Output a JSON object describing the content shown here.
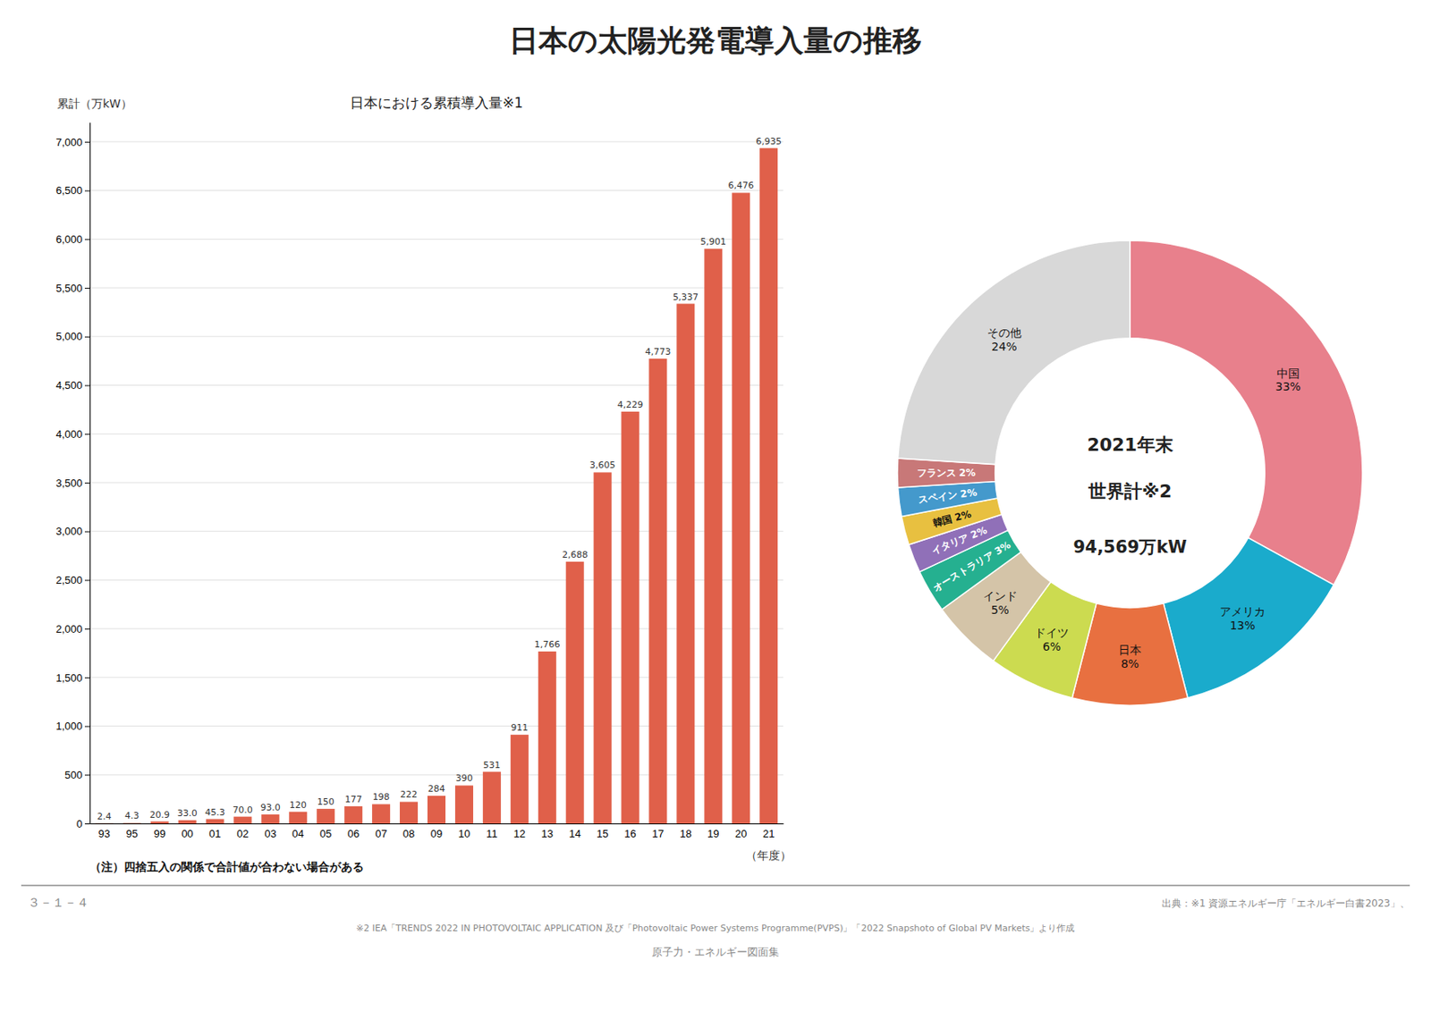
{
  "title": "日本の太陽光発電導入量の推移",
  "annotations": [
    "（注）四捨五入の関係で合計値が合わない場合がある",
    "３－１－４",
    "出典：※1 資源エネルギー庁「エネルギー白書2023」、",
    "※2 IEA「TRENDS 2022 IN PHOTOVOLTAIC APPLICATION 及び「Photovoltaic Power Systems Programme(PVPS)」「2022 Snapshoto of Global PV Markets」より作成",
    "原子力・エネルギー図面集"
  ],
  "chart_data": [
    {
      "type": "bar",
      "subtitle": "日本における累積導入量※1",
      "ylabel": "累計（万kW）",
      "xlabel": "（年度）",
      "categories": [
        "93",
        "95",
        "99",
        "00",
        "01",
        "02",
        "03",
        "04",
        "05",
        "06",
        "07",
        "08",
        "09",
        "10",
        "11",
        "12",
        "13",
        "14",
        "15",
        "16",
        "17",
        "18",
        "19",
        "20",
        "21"
      ],
      "values": [
        2.4,
        4.3,
        20.9,
        33.0,
        45.3,
        70,
        93,
        120,
        150,
        177,
        198,
        222,
        284,
        390,
        531,
        911,
        1766,
        2688,
        3605,
        4229,
        4773,
        5337,
        5901,
        6476,
        6935
      ],
      "value_labels": [
        "2.4",
        "4.3",
        "20.9",
        "33.0",
        "45.3",
        "70.0",
        "93.0",
        "120",
        "150",
        "177",
        "198",
        "222",
        "284",
        "390",
        "531",
        "911",
        "1,766",
        "2,688",
        "3,605",
        "4,229",
        "4,773",
        "5,337",
        "5,901",
        "6,476",
        "6,935"
      ],
      "data_labels": true,
      "color": "#E0604A",
      "ylim": [
        0,
        7200
      ],
      "yticks": [
        0,
        500,
        {
          "value": 1000,
          "label": "1,000"
        },
        {
          "value": 1500,
          "label": "1,500"
        },
        {
          "value": 2000,
          "label": "2,000"
        },
        {
          "value": 2500,
          "label": "2,500"
        },
        {
          "value": 3000,
          "label": "3,000"
        },
        {
          "value": 3500,
          "label": "3,500"
        },
        {
          "value": 4000,
          "label": "4,000"
        },
        {
          "value": 4500,
          "label": "4,500"
        },
        {
          "value": 5000,
          "label": "5,000"
        },
        {
          "value": 5500,
          "label": "5,500"
        },
        {
          "value": 6000,
          "label": "6,000"
        },
        {
          "value": 6500,
          "label": "6,500"
        },
        {
          "value": 7000,
          "label": "7,000"
        }
      ],
      "grid": true
    },
    {
      "type": "pie",
      "categories": [
        "中国",
        "アメリカ",
        "日本",
        "ドイツ",
        "インド",
        "オーストラリア",
        "イタリア",
        "韓国",
        "スペイン",
        "フランス",
        "その他"
      ],
      "values": [
        33,
        13,
        8,
        6,
        5,
        3,
        2,
        2,
        2,
        2,
        24
      ],
      "value_labels": [
        "33%",
        "13%",
        "8%",
        "6%",
        "5%",
        "3%",
        "2%",
        "2%",
        "2%",
        "2%",
        "24%"
      ],
      "data_labels": true,
      "colors": [
        "#E8808C",
        "#1AABCC",
        "#E87040",
        "#CCDB50",
        "#D4C4A8",
        "#25B090",
        "#9070B8",
        "#E8C040",
        "#4499CC",
        "#C87878",
        "#D8D8D8"
      ],
      "annotations": [
        "2021年末",
        "世界計※2",
        "94,569万kW"
      ]
    }
  ]
}
